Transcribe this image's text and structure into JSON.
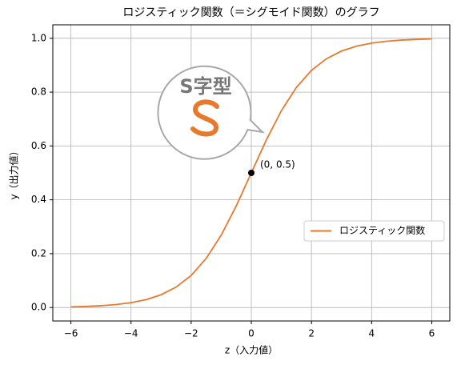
{
  "chart_data": {
    "type": "line",
    "title": "ロジスティック関数（＝シグモイド関数）のグラフ",
    "xlabel": "z（入力値）",
    "ylabel": "y（出力値）",
    "x": [
      -6,
      -5.5,
      -5,
      -4.5,
      -4,
      -3.5,
      -3,
      -2.5,
      -2,
      -1.5,
      -1,
      -0.5,
      0,
      0.5,
      1,
      1.5,
      2,
      2.5,
      3,
      3.5,
      4,
      4.5,
      5,
      5.5,
      6
    ],
    "series": [
      {
        "name": "ロジスティック関数",
        "color": "#e8792c",
        "values": [
          0.0025,
          0.0041,
          0.0067,
          0.011,
          0.018,
          0.0293,
          0.0474,
          0.0759,
          0.1192,
          0.1824,
          0.2689,
          0.3775,
          0.5,
          0.6225,
          0.7311,
          0.8176,
          0.8808,
          0.9241,
          0.9526,
          0.9707,
          0.982,
          0.989,
          0.9933,
          0.9959,
          0.9975
        ]
      }
    ],
    "xlim": [
      -6.6,
      6.6
    ],
    "ylim": [
      -0.05,
      1.05
    ],
    "xticks": [
      {
        "value": -6,
        "label": "−6"
      },
      {
        "value": -4,
        "label": "−4"
      },
      {
        "value": -2,
        "label": "−2"
      },
      0,
      2,
      4,
      6
    ],
    "yticks": [
      {
        "value": 0,
        "label": "0.0"
      },
      0.2,
      0.4,
      0.6,
      0.8,
      {
        "value": 1,
        "label": "1.0"
      }
    ],
    "grid": true,
    "legend": "center right",
    "annotations": [
      {
        "x": 0,
        "y": 0.5,
        "label": "(0, 0.5)"
      }
    ],
    "callout": "S字型"
  }
}
